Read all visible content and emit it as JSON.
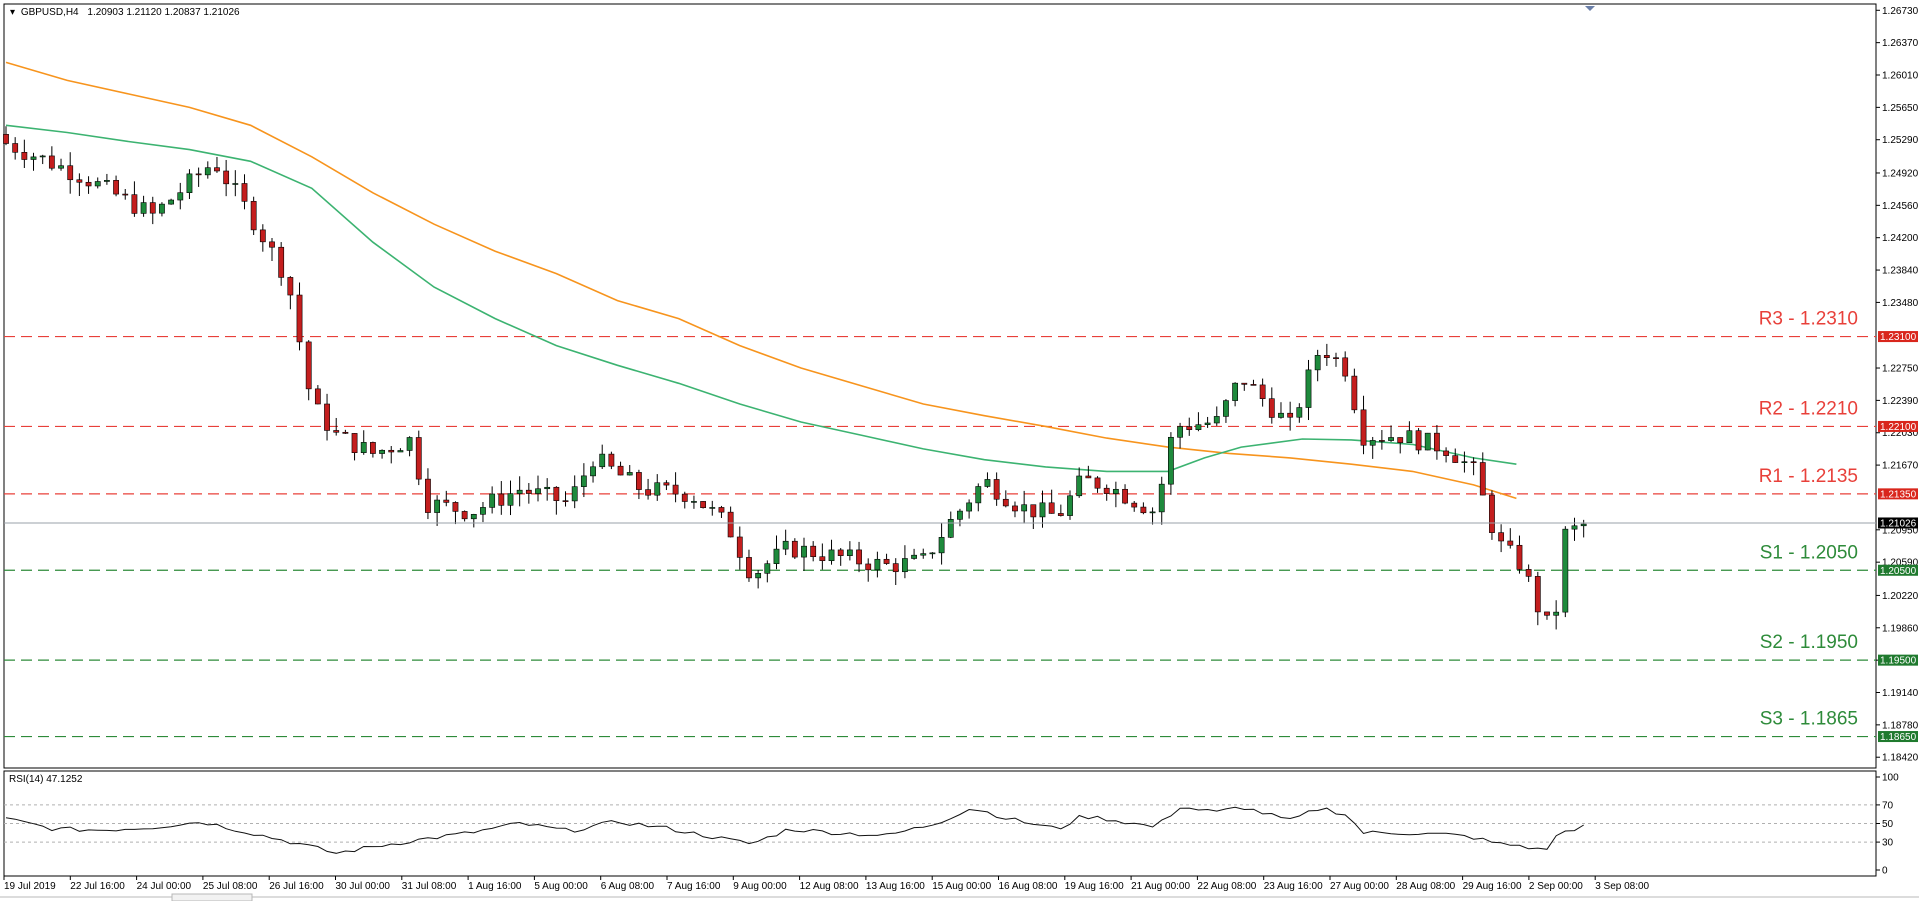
{
  "chart_data": {
    "type": "candlestick",
    "header": {
      "symbol": "GBPUSD,H4",
      "ohlc": "1.20903 1.21120 1.20837 1.21026"
    },
    "price_axis": {
      "ylim": [
        1.183,
        1.268
      ],
      "tick_values": [
        1.2673,
        1.2637,
        1.2601,
        1.2565,
        1.2529,
        1.2492,
        1.2456,
        1.242,
        1.2384,
        1.2348,
        1.2275,
        1.2239,
        1.2203,
        1.2167,
        1.2095,
        1.2059,
        1.2022,
        1.1986,
        1.195,
        1.1914,
        1.1878,
        1.1842
      ],
      "tick_labels": [
        "1.26730",
        "1.26370",
        "1.26010",
        "1.25650",
        "1.25290",
        "1.24920",
        "1.24560",
        "1.24200",
        "1.23840",
        "1.23480",
        "1.22750",
        "1.22390",
        "1.22030",
        "1.21670",
        "1.20950",
        "1.20590",
        "1.20220",
        "1.19860",
        "1.19500",
        "1.19140",
        "1.18780",
        "1.18420"
      ]
    },
    "current_price": {
      "value": 1.21026,
      "label": "1.21026"
    },
    "levels": [
      {
        "name": "R3",
        "value": 1.231,
        "text": "R3 - 1.2310",
        "tag": "1.23100",
        "color": "#e8403a",
        "kind": "resistance"
      },
      {
        "name": "R2",
        "value": 1.221,
        "text": "R2 - 1.2210",
        "tag": "1.22100",
        "color": "#e8403a",
        "kind": "resistance"
      },
      {
        "name": "R1",
        "value": 1.2135,
        "text": "R1 - 1.2135",
        "tag": "1.21350",
        "color": "#e8403a",
        "kind": "resistance"
      },
      {
        "name": "S1",
        "value": 1.205,
        "text": "S1 - 1.2050",
        "tag": "1.20500",
        "color": "#2e8b3a",
        "kind": "support"
      },
      {
        "name": "S2",
        "value": 1.195,
        "text": "S2 - 1.1950",
        "tag": "1.19500",
        "color": "#2e8b3a",
        "kind": "support"
      },
      {
        "name": "S3",
        "value": 1.1865,
        "text": "S3 - 1.1865",
        "tag": "1.18650",
        "color": "#2e8b3a",
        "kind": "support"
      }
    ],
    "moving_averages": [
      {
        "color": "#f7941d",
        "points": [
          [
            0,
            1.2615
          ],
          [
            50,
            1.2595
          ],
          [
            100,
            1.258
          ],
          [
            150,
            1.2565
          ],
          [
            200,
            1.2545
          ],
          [
            250,
            1.251
          ],
          [
            300,
            1.247
          ],
          [
            350,
            1.2435
          ],
          [
            400,
            1.2405
          ],
          [
            450,
            1.238
          ],
          [
            500,
            1.235
          ],
          [
            550,
            1.233
          ],
          [
            600,
            1.23
          ],
          [
            650,
            1.2275
          ],
          [
            700,
            1.2255
          ],
          [
            750,
            1.2235
          ],
          [
            800,
            1.2222
          ],
          [
            850,
            1.221
          ],
          [
            900,
            1.2197
          ],
          [
            950,
            1.2187
          ],
          [
            1000,
            1.218
          ],
          [
            1050,
            1.2175
          ],
          [
            1100,
            1.2168
          ],
          [
            1150,
            1.216
          ],
          [
            1200,
            1.2145
          ],
          [
            1235,
            1.213
          ]
        ]
      },
      {
        "color": "#3cb371",
        "points": [
          [
            0,
            1.2545
          ],
          [
            50,
            1.2537
          ],
          [
            100,
            1.2527
          ],
          [
            150,
            1.2518
          ],
          [
            200,
            1.2505
          ],
          [
            250,
            1.2475
          ],
          [
            300,
            1.2415
          ],
          [
            350,
            1.2365
          ],
          [
            400,
            1.233
          ],
          [
            450,
            1.23
          ],
          [
            500,
            1.2278
          ],
          [
            550,
            1.2258
          ],
          [
            600,
            1.2235
          ],
          [
            650,
            1.2215
          ],
          [
            700,
            1.22
          ],
          [
            750,
            1.2185
          ],
          [
            800,
            1.2173
          ],
          [
            850,
            1.2165
          ],
          [
            900,
            1.216
          ],
          [
            950,
            1.216
          ],
          [
            980,
            1.2175
          ],
          [
            1010,
            1.2187
          ],
          [
            1060,
            1.2196
          ],
          [
            1100,
            1.2195
          ],
          [
            1150,
            1.219
          ],
          [
            1200,
            1.2175
          ],
          [
            1235,
            1.2168
          ]
        ]
      }
    ],
    "candle_anchors": [
      [
        0,
        1.2525
      ],
      [
        60,
        1.249
      ],
      [
        120,
        1.2445
      ],
      [
        170,
        1.2505
      ],
      [
        200,
        1.2445
      ],
      [
        230,
        1.2375
      ],
      [
        250,
        1.2235
      ],
      [
        270,
        1.22
      ],
      [
        300,
        1.218
      ],
      [
        330,
        1.2195
      ],
      [
        345,
        1.2125
      ],
      [
        380,
        1.2115
      ],
      [
        420,
        1.214
      ],
      [
        460,
        1.2125
      ],
      [
        480,
        1.2175
      ],
      [
        520,
        1.214
      ],
      [
        560,
        1.2135
      ],
      [
        590,
        1.21
      ],
      [
        610,
        1.2045
      ],
      [
        640,
        1.2075
      ],
      [
        680,
        1.2065
      ],
      [
        720,
        1.2055
      ],
      [
        750,
        1.206
      ],
      [
        770,
        1.21
      ],
      [
        800,
        1.215
      ],
      [
        830,
        1.212
      ],
      [
        860,
        1.211
      ],
      [
        880,
        1.215
      ],
      [
        900,
        1.2145
      ],
      [
        940,
        1.2115
      ],
      [
        955,
        1.221
      ],
      [
        990,
        1.2215
      ],
      [
        1010,
        1.2265
      ],
      [
        1050,
        1.221
      ],
      [
        1075,
        1.23
      ],
      [
        1095,
        1.2275
      ],
      [
        1110,
        1.22
      ],
      [
        1140,
        1.22
      ],
      [
        1180,
        1.2185
      ],
      [
        1200,
        1.216
      ],
      [
        1220,
        1.208
      ],
      [
        1240,
        1.2055
      ],
      [
        1255,
        1.2
      ],
      [
        1265,
        1.198
      ],
      [
        1275,
        1.209
      ],
      [
        1290,
        1.21
      ]
    ],
    "time_axis": {
      "labels": [
        "19 Jul 2019",
        "22 Jul 16:00",
        "24 Jul 00:00",
        "25 Jul 08:00",
        "26 Jul 16:00",
        "30 Jul 00:00",
        "31 Jul 08:00",
        "1 Aug 16:00",
        "5 Aug 00:00",
        "6 Aug 08:00",
        "7 Aug 16:00",
        "9 Aug 00:00",
        "12 Aug 08:00",
        "13 Aug 16:00",
        "15 Aug 00:00",
        "16 Aug 08:00",
        "19 Aug 16:00",
        "21 Aug 00:00",
        "22 Aug 08:00",
        "23 Aug 16:00",
        "27 Aug 00:00",
        "28 Aug 08:00",
        "29 Aug 16:00",
        "2 Sep 00:00",
        "3 Sep 08:00"
      ]
    },
    "rsi": {
      "header": "RSI(14) 47.1252",
      "ylim": [
        0,
        100
      ],
      "tick_values": [
        100,
        70,
        50,
        30,
        0
      ],
      "tick_labels": [
        "100",
        "70",
        "50",
        "30",
        "0"
      ],
      "anchors": [
        [
          0,
          55
        ],
        [
          40,
          44
        ],
        [
          80,
          43
        ],
        [
          120,
          46
        ],
        [
          160,
          52
        ],
        [
          200,
          40
        ],
        [
          240,
          28
        ],
        [
          270,
          18
        ],
        [
          300,
          25
        ],
        [
          340,
          33
        ],
        [
          380,
          40
        ],
        [
          420,
          50
        ],
        [
          460,
          42
        ],
        [
          500,
          52
        ],
        [
          540,
          45
        ],
        [
          580,
          35
        ],
        [
          610,
          28
        ],
        [
          640,
          44
        ],
        [
          680,
          40
        ],
        [
          720,
          37
        ],
        [
          760,
          50
        ],
        [
          790,
          67
        ],
        [
          820,
          55
        ],
        [
          860,
          44
        ],
        [
          880,
          58
        ],
        [
          900,
          55
        ],
        [
          940,
          46
        ],
        [
          960,
          68
        ],
        [
          990,
          62
        ],
        [
          1010,
          68
        ],
        [
          1050,
          53
        ],
        [
          1075,
          67
        ],
        [
          1095,
          60
        ],
        [
          1110,
          40
        ],
        [
          1140,
          40
        ],
        [
          1180,
          38
        ],
        [
          1200,
          35
        ],
        [
          1220,
          28
        ],
        [
          1240,
          26
        ],
        [
          1258,
          20
        ],
        [
          1270,
          40
        ],
        [
          1290,
          47
        ]
      ]
    }
  }
}
